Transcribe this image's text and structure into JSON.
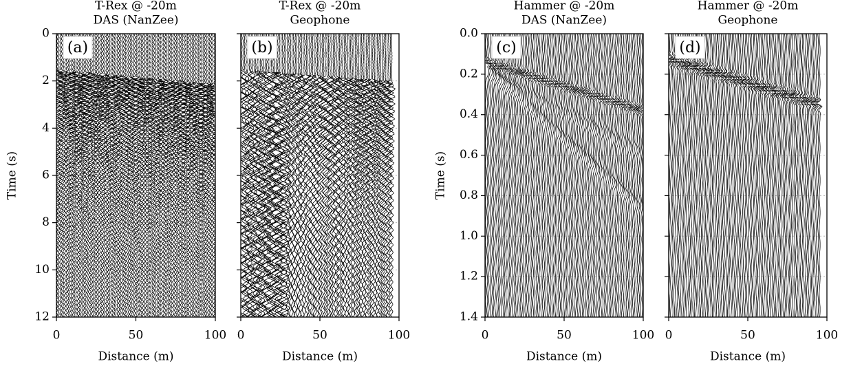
{
  "chart_data": [
    {
      "type": "seismic",
      "title": "T-Rex @ -20m",
      "subtitle": "DAS (NanZee)",
      "panel_label": "(a)",
      "xlabel": "Distance (m)",
      "ylabel": "Time (s)",
      "xlim": [
        0,
        100
      ],
      "xticks": [
        0,
        50,
        100
      ],
      "ylim": [
        0,
        12
      ],
      "yticks": [
        0,
        2,
        4,
        6,
        8,
        10,
        12
      ],
      "y_inverted": true,
      "show_ytick_labels": true,
      "grid": true,
      "color": "#000000"
    },
    {
      "type": "seismic",
      "title": "T-Rex @ -20m",
      "subtitle": "Geophone",
      "panel_label": "(b)",
      "xlabel": "Distance (m)",
      "xlim": [
        0,
        100
      ],
      "xticks": [
        0,
        50,
        100
      ],
      "ylim": [
        0,
        12
      ],
      "yticks": [
        0,
        2,
        4,
        6,
        8,
        10,
        12
      ],
      "y_inverted": true,
      "show_ytick_labels": false,
      "grid": true,
      "color": "#000000"
    },
    {
      "type": "seismic",
      "title": "Hammer @ -20m",
      "subtitle": "DAS (NanZee)",
      "panel_label": "(c)",
      "xlabel": "Distance (m)",
      "ylabel": "Time (s)",
      "xlim": [
        0,
        100
      ],
      "xticks": [
        0,
        50,
        100
      ],
      "ylim": [
        0,
        1.4
      ],
      "yticks": [
        {
          "value": 0,
          "label": "0.0"
        },
        0.2,
        0.4,
        0.6,
        0.8,
        {
          "value": 1,
          "label": "1.0"
        },
        1.2,
        1.4
      ],
      "y_inverted": true,
      "show_ytick_labels": true,
      "grid": true,
      "color": "#000000"
    },
    {
      "type": "seismic",
      "title": "Hammer @ -20m",
      "subtitle": "Geophone",
      "panel_label": "(d)",
      "xlabel": "Distance (m)",
      "xlim": [
        0,
        100
      ],
      "xticks": [
        0,
        50,
        100
      ],
      "ylim": [
        0,
        1.4
      ],
      "yticks": [
        {
          "value": 0,
          "label": "0.0"
        },
        0.2,
        0.4,
        0.6,
        0.8,
        {
          "value": 1,
          "label": "1.0"
        },
        1.2,
        1.4
      ],
      "y_inverted": true,
      "show_ytick_labels": false,
      "grid": true,
      "color": "#000000"
    }
  ]
}
